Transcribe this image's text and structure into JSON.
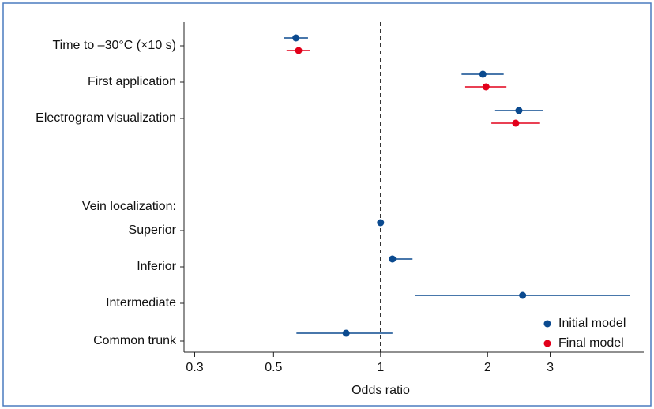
{
  "chart_data": {
    "type": "forest",
    "xlabel": "Odds ratio",
    "xscale": "log",
    "xlim": [
      0.28,
      5.5
    ],
    "xticks": [
      0.3,
      0.5,
      1,
      2,
      3
    ],
    "reference_line": 1,
    "legend_position": "lower right",
    "series": [
      {
        "name": "Initial model",
        "color": "#0b4a8f"
      },
      {
        "name": "Final model",
        "color": "#e2001a"
      }
    ],
    "rows": [
      {
        "label": "Time to –30°C (×10 s)",
        "initial": {
          "value": 0.578,
          "low": 0.536,
          "high": 0.625
        },
        "final": {
          "value": 0.588,
          "low": 0.544,
          "high": 0.634
        }
      },
      {
        "label": "First application",
        "initial": {
          "value": 1.94,
          "low": 1.69,
          "high": 2.22
        },
        "final": {
          "value": 1.98,
          "low": 1.73,
          "high": 2.26
        }
      },
      {
        "label": "Electrogram visualization",
        "initial": {
          "value": 2.45,
          "low": 2.1,
          "high": 2.87
        },
        "final": {
          "value": 2.4,
          "low": 2.05,
          "high": 2.81
        }
      },
      {
        "label": "Vein localization:"
      },
      {
        "label": "Superior",
        "initial": {
          "value": 1
        }
      },
      {
        "label": "Inferior",
        "initial": {
          "value": 1.08,
          "low": 1.06,
          "high": 1.23
        }
      },
      {
        "label": "Intermediate",
        "initial": {
          "value": 2.51,
          "low": 1.25,
          "high": 5.04
        }
      },
      {
        "label": "Common trunk",
        "initial": {
          "value": 0.8,
          "low": 0.58,
          "high": 1.08
        }
      }
    ]
  }
}
